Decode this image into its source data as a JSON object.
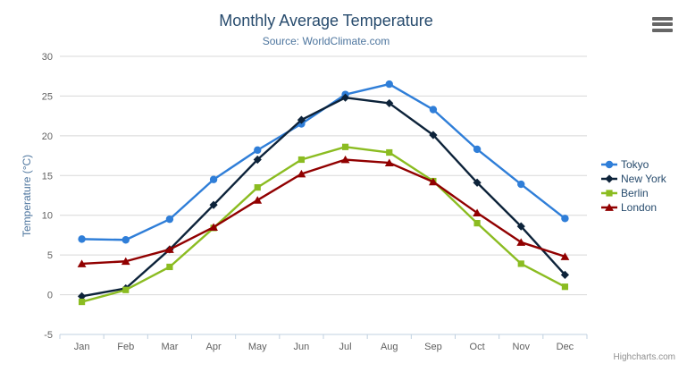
{
  "header": {
    "title": "Monthly Average Temperature",
    "subtitle": "Source: WorldClimate.com"
  },
  "footer": {
    "credit": "Highcharts.com"
  },
  "icons": {
    "context_menu": "hamburger-icon"
  },
  "colors": {
    "title": "#274b6d",
    "subtitle": "#4d759e",
    "axis_labels": "#606060",
    "axis_line": "#c0d0e0",
    "grid_line": "#d8d8d8",
    "legend_text": "#274b6d",
    "credit": "#909090",
    "menu_icon": "#666666"
  },
  "chart_data": {
    "type": "line",
    "title": "Monthly Average Temperature",
    "subtitle": "Source: WorldClimate.com",
    "xlabel": "",
    "ylabel": "Temperature (°C)",
    "categories": [
      "Jan",
      "Feb",
      "Mar",
      "Apr",
      "May",
      "Jun",
      "Jul",
      "Aug",
      "Sep",
      "Oct",
      "Nov",
      "Dec"
    ],
    "ylim": [
      -5,
      30
    ],
    "ytick_step": 5,
    "grid": true,
    "legend_position": "right",
    "series": [
      {
        "name": "Tokyo",
        "color": "#2f7ed8",
        "marker": "circle",
        "values": [
          7.0,
          6.9,
          9.5,
          14.5,
          18.2,
          21.5,
          25.2,
          26.5,
          23.3,
          18.3,
          13.9,
          9.6
        ]
      },
      {
        "name": "New York",
        "color": "#0d233a",
        "marker": "diamond",
        "values": [
          -0.2,
          0.8,
          5.7,
          11.3,
          17.0,
          22.0,
          24.8,
          24.1,
          20.1,
          14.1,
          8.6,
          2.5
        ]
      },
      {
        "name": "Berlin",
        "color": "#8bbc21",
        "marker": "square",
        "values": [
          -0.9,
          0.6,
          3.5,
          8.4,
          13.5,
          17.0,
          18.6,
          17.9,
          14.3,
          9.0,
          3.9,
          1.0
        ]
      },
      {
        "name": "London",
        "color": "#910000",
        "marker": "triangle",
        "values": [
          3.9,
          4.2,
          5.7,
          8.5,
          11.9,
          15.2,
          17.0,
          16.6,
          14.2,
          10.3,
          6.6,
          4.8
        ]
      }
    ]
  }
}
